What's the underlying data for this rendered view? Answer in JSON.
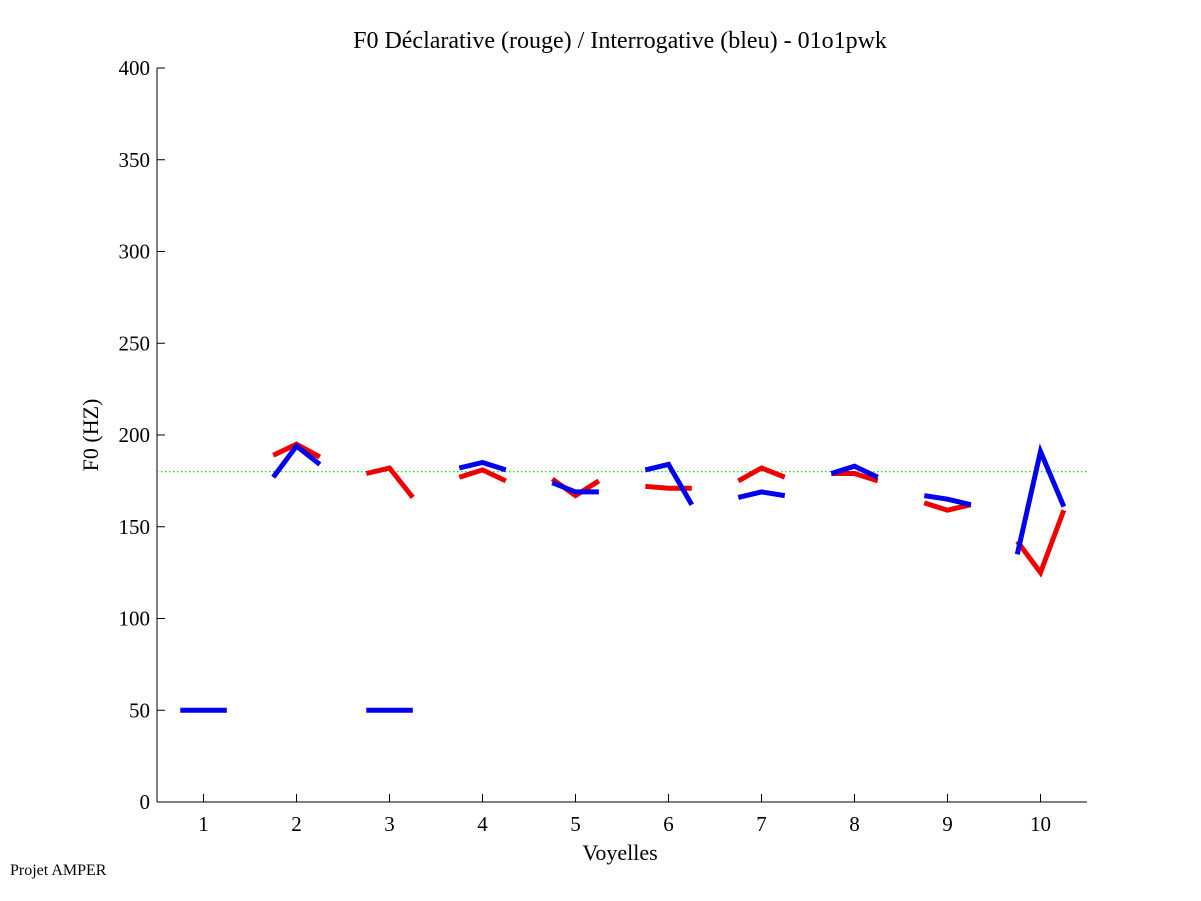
{
  "chart_data": {
    "type": "line",
    "title": "F0 Déclarative (rouge) / Interrogative (bleu) - 01o1pwk",
    "xlabel": "Voyelles",
    "ylabel": "F0 (HZ)",
    "xlim": [
      0.5,
      10.5
    ],
    "ylim": [
      0,
      400
    ],
    "xticks": [
      "1",
      "2",
      "3",
      "4",
      "5",
      "6",
      "7",
      "8",
      "9",
      "10"
    ],
    "yticks": [
      "0",
      "50",
      "100",
      "150",
      "200",
      "250",
      "300",
      "350",
      "400"
    ],
    "reference_line": {
      "y": 180,
      "color": "#00cc00",
      "style": "dotted"
    },
    "series": [
      {
        "name": "Déclarative",
        "color": "#ee0000",
        "segments": [
          {
            "vowel": 2,
            "x": [
              1.75,
              2.0,
              2.25
            ],
            "y": [
              189,
              195,
              188
            ]
          },
          {
            "vowel": 3,
            "x": [
              2.75,
              3.0,
              3.25
            ],
            "y": [
              179,
              182,
              166
            ]
          },
          {
            "vowel": 4,
            "x": [
              3.75,
              4.0,
              4.25
            ],
            "y": [
              177,
              181,
              175
            ]
          },
          {
            "vowel": 5,
            "x": [
              4.75,
              5.0,
              5.25
            ],
            "y": [
              176,
              167,
              175
            ]
          },
          {
            "vowel": 6,
            "x": [
              5.75,
              6.0,
              6.25
            ],
            "y": [
              172,
              171,
              171
            ]
          },
          {
            "vowel": 7,
            "x": [
              6.75,
              7.0,
              7.25
            ],
            "y": [
              175,
              182,
              177
            ]
          },
          {
            "vowel": 8,
            "x": [
              7.75,
              8.0,
              8.25
            ],
            "y": [
              179,
              179,
              175
            ]
          },
          {
            "vowel": 9,
            "x": [
              8.75,
              9.0,
              9.25
            ],
            "y": [
              163,
              159,
              162
            ]
          },
          {
            "vowel": 10,
            "x": [
              9.75,
              10.0,
              10.25
            ],
            "y": [
              142,
              125,
              159
            ]
          }
        ]
      },
      {
        "name": "Interrogative",
        "color": "#0000ee",
        "segments": [
          {
            "vowel": 1,
            "x": [
              0.75,
              1.0,
              1.25
            ],
            "y": [
              50,
              50,
              50
            ]
          },
          {
            "vowel": 2,
            "x": [
              1.75,
              2.0,
              2.25
            ],
            "y": [
              177,
              194,
              184
            ]
          },
          {
            "vowel": 3,
            "x": [
              2.75,
              3.0,
              3.25
            ],
            "y": [
              50,
              50,
              50
            ]
          },
          {
            "vowel": 4,
            "x": [
              3.75,
              4.0,
              4.25
            ],
            "y": [
              182,
              185,
              181
            ]
          },
          {
            "vowel": 5,
            "x": [
              4.75,
              5.0,
              5.25
            ],
            "y": [
              174,
              169,
              169
            ]
          },
          {
            "vowel": 6,
            "x": [
              5.75,
              6.0,
              6.25
            ],
            "y": [
              181,
              184,
              162
            ]
          },
          {
            "vowel": 7,
            "x": [
              6.75,
              7.0,
              7.25
            ],
            "y": [
              166,
              169,
              167
            ]
          },
          {
            "vowel": 8,
            "x": [
              7.75,
              8.0,
              8.25
            ],
            "y": [
              179,
              183,
              177
            ]
          },
          {
            "vowel": 9,
            "x": [
              8.75,
              9.0,
              9.25
            ],
            "y": [
              167,
              165,
              162
            ]
          },
          {
            "vowel": 10,
            "x": [
              9.75,
              10.0,
              10.25
            ],
            "y": [
              135,
              191,
              161
            ]
          }
        ]
      }
    ]
  },
  "footer": {
    "label": "Projet AMPER"
  }
}
